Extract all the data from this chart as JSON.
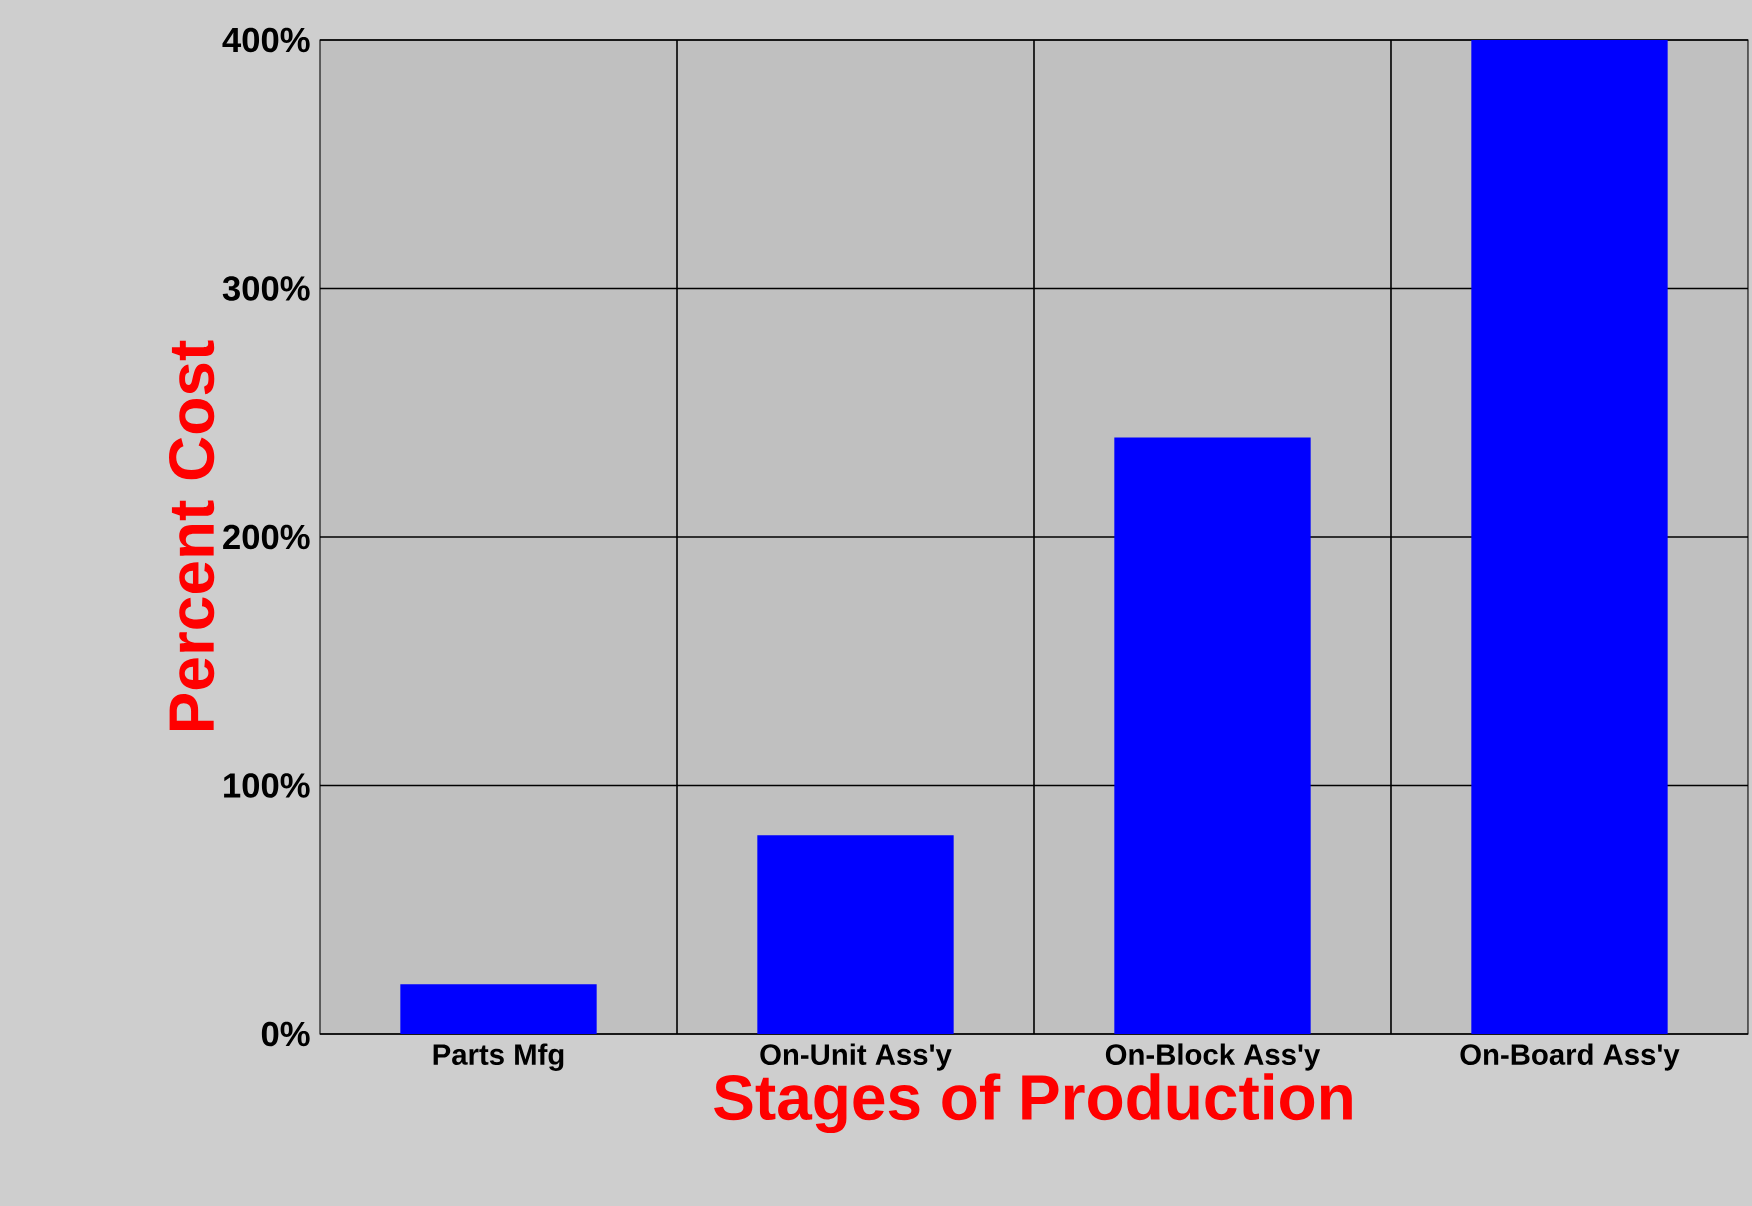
{
  "chart_data": {
    "type": "bar",
    "xlabel": "Stages of Production",
    "ylabel": "Percent Cost",
    "categories": [
      "Parts Mfg",
      "On-Unit Ass'y",
      "On-Block Ass'y",
      "On-Board Ass'y"
    ],
    "values": [
      20,
      80,
      240,
      400
    ],
    "color": "#0000ff",
    "ylim": [
      0,
      400
    ],
    "yticks": [
      {
        "value": 0,
        "label": "0%"
      },
      {
        "value": 100,
        "label": "100%"
      },
      {
        "value": 200,
        "label": "200%"
      },
      {
        "value": 300,
        "label": "300%"
      },
      {
        "value": 400,
        "label": "400%"
      }
    ],
    "grid": true
  }
}
